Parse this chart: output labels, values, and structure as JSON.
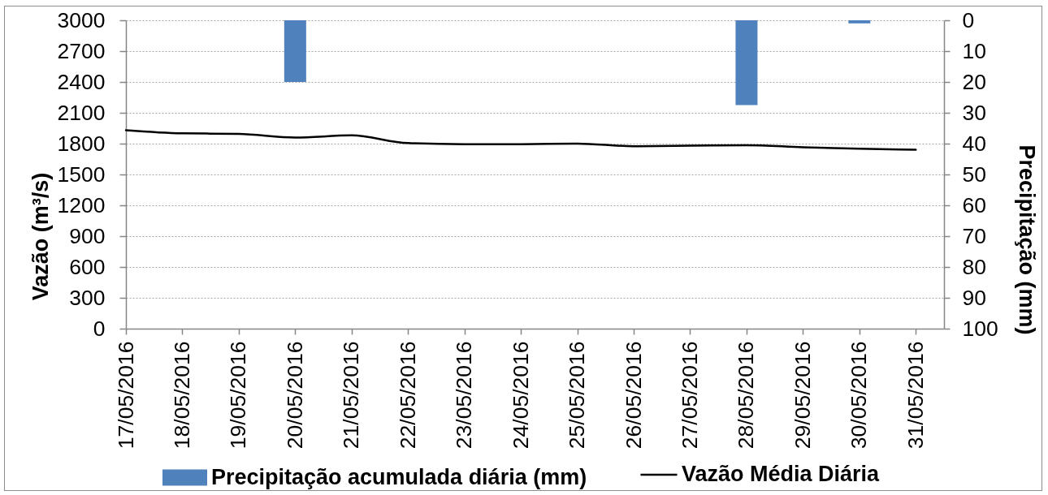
{
  "chart_data": {
    "type": "bar",
    "categories": [
      "17/05/2016",
      "18/05/2016",
      "19/05/2016",
      "20/05/2016",
      "21/05/2016",
      "22/05/2016",
      "23/05/2016",
      "24/05/2016",
      "25/05/2016",
      "26/05/2016",
      "27/05/2016",
      "28/05/2016",
      "29/05/2016",
      "30/05/2016",
      "31/05/2016"
    ],
    "series": [
      {
        "name": "Precipitação acumulada diária (mm)",
        "axis": "y2",
        "color": "#4f81bd",
        "values": [
          null,
          null,
          null,
          20,
          null,
          null,
          null,
          null,
          null,
          null,
          null,
          27.5,
          null,
          1,
          null
        ]
      },
      {
        "name": "Vazão Média Diária",
        "type": "line",
        "color": "#000000",
        "values": [
          1930,
          1900,
          1895,
          1860,
          1880,
          1805,
          1795,
          1795,
          1800,
          1775,
          1780,
          1785,
          1765,
          1750,
          1740
        ]
      }
    ],
    "ylabel": "Vazão (m³/s)",
    "y2label": "Precipitação (mm)",
    "ylim": [
      0,
      3000
    ],
    "yticks": [
      0,
      300,
      600,
      900,
      1200,
      1500,
      1800,
      2100,
      2400,
      2700,
      3000
    ],
    "y2lim": [
      100,
      0
    ],
    "y2ticks": [
      0,
      10,
      20,
      30,
      40,
      50,
      60,
      70,
      80,
      90,
      100
    ],
    "grid": "y",
    "legend": "bottom"
  }
}
